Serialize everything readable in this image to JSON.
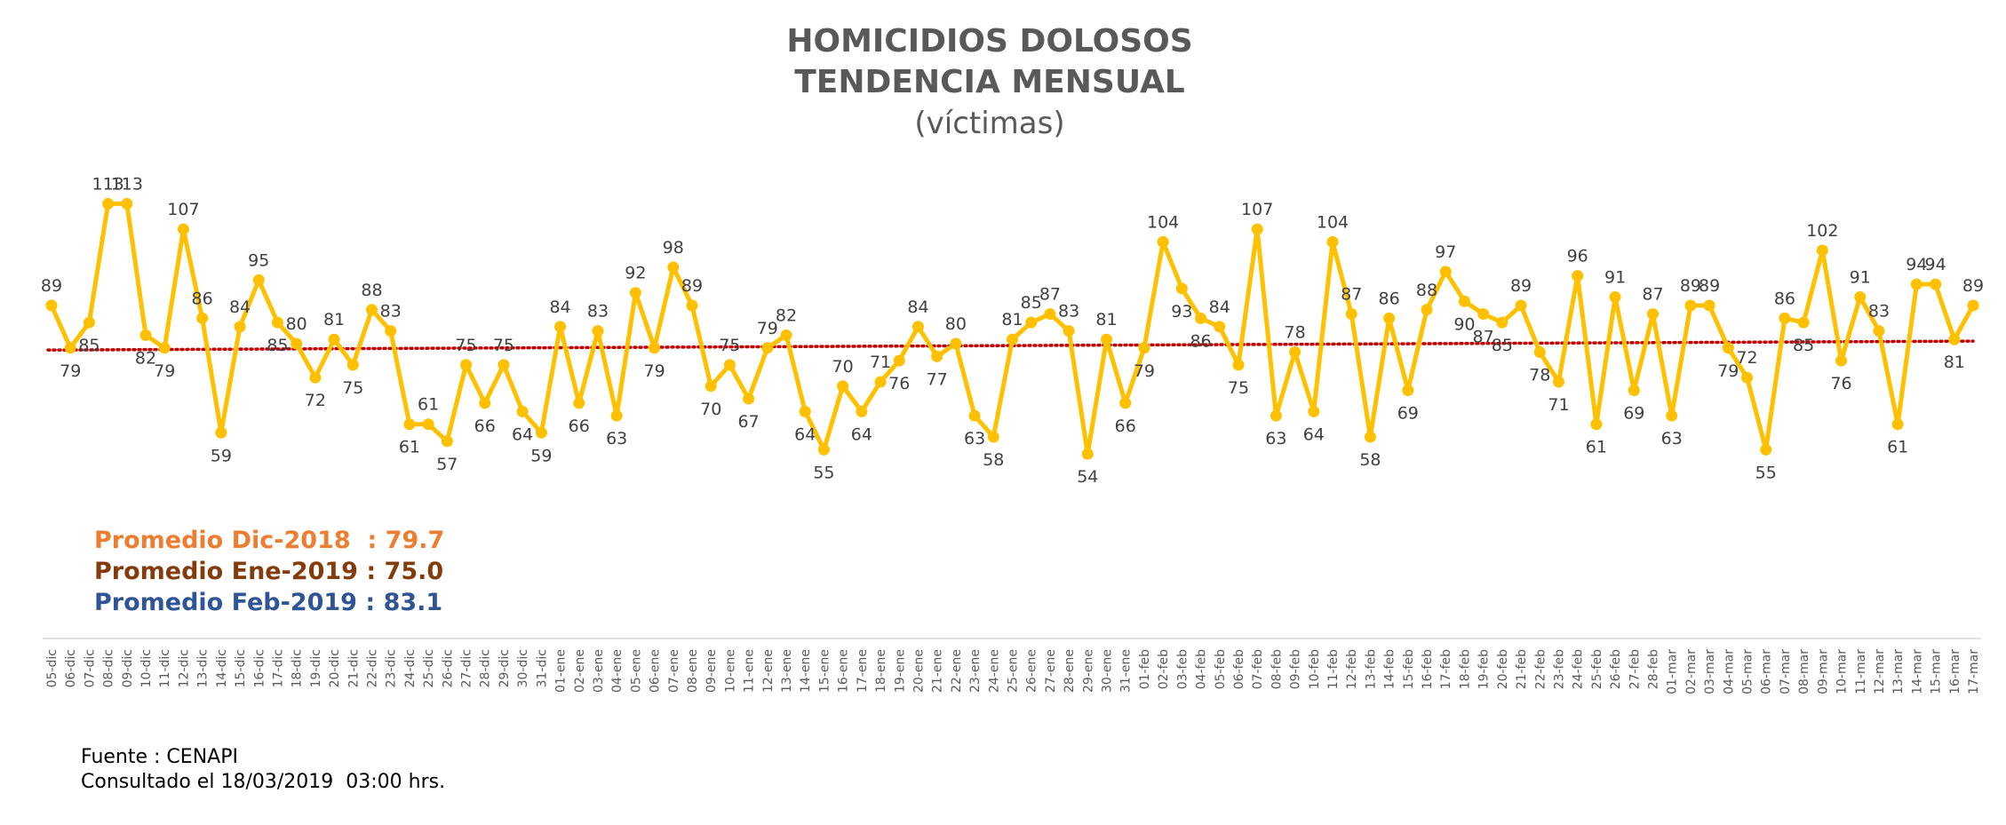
{
  "chart_data": {
    "type": "line",
    "title": "HOMICIDIOS DOLOSOS",
    "subtitle": "TENDENCIA MENSUAL",
    "unit_label": "(víctimas)",
    "categories": [
      "05-dic",
      "06-dic",
      "07-dic",
      "08-dic",
      "09-dic",
      "10-dic",
      "11-dic",
      "12-dic",
      "13-dic",
      "14-dic",
      "15-dic",
      "16-dic",
      "17-dic",
      "18-dic",
      "19-dic",
      "20-dic",
      "21-dic",
      "22-dic",
      "23-dic",
      "24-dic",
      "25-dic",
      "26-dic",
      "27-dic",
      "28-dic",
      "29-dic",
      "30-dic",
      "31-dic",
      "01-ene",
      "02-ene",
      "03-ene",
      "04-ene",
      "05-ene",
      "06-ene",
      "07-ene",
      "08-ene",
      "09-ene",
      "10-ene",
      "11-ene",
      "12-ene",
      "13-ene",
      "14-ene",
      "15-ene",
      "16-ene",
      "17-ene",
      "18-ene",
      "19-ene",
      "20-ene",
      "21-ene",
      "22-ene",
      "23-ene",
      "24-ene",
      "25-ene",
      "26-ene",
      "27-ene",
      "28-ene",
      "29-ene",
      "30-ene",
      "31-ene",
      "01-feb",
      "02-feb",
      "03-feb",
      "04-feb",
      "05-feb",
      "06-feb",
      "07-feb",
      "08-feb",
      "09-feb",
      "10-feb",
      "11-feb",
      "12-feb",
      "13-feb",
      "14-feb",
      "15-feb",
      "16-feb",
      "17-feb",
      "18-feb",
      "19-feb",
      "20-feb",
      "21-feb",
      "22-feb",
      "23-feb",
      "24-feb",
      "25-feb",
      "26-feb",
      "27-feb",
      "28-feb",
      "01-mar",
      "02-mar",
      "03-mar",
      "04-mar",
      "05-mar",
      "06-mar",
      "07-mar",
      "08-mar",
      "09-mar",
      "10-mar",
      "11-mar",
      "12-mar",
      "13-mar",
      "14-mar",
      "15-mar",
      "16-mar",
      "17-mar"
    ],
    "series": [
      {
        "name": "Homicidios dolosos",
        "color": "#ffc000",
        "values": [
          89,
          79,
          85,
          113,
          113,
          82,
          79,
          107,
          86,
          59,
          84,
          95,
          85,
          80,
          72,
          81,
          75,
          88,
          83,
          61,
          61,
          57,
          75,
          66,
          75,
          64,
          59,
          84,
          66,
          83,
          63,
          92,
          79,
          98,
          89,
          70,
          75,
          67,
          79,
          82,
          64,
          55,
          70,
          64,
          71,
          76,
          84,
          77,
          80,
          63,
          58,
          81,
          85,
          87,
          83,
          54,
          81,
          66,
          79,
          104,
          93,
          86,
          84,
          75,
          107,
          63,
          78,
          64,
          104,
          87,
          58,
          86,
          69,
          88,
          97,
          90,
          87,
          85,
          89,
          78,
          71,
          96,
          61,
          91,
          69,
          87,
          63,
          89,
          89,
          79,
          72,
          55,
          86,
          85,
          102,
          76,
          91,
          83,
          61,
          94,
          94,
          81,
          89
        ]
      }
    ],
    "trend": {
      "color": "#c00000",
      "values": [
        78.5,
        80.6
      ]
    },
    "ylim": [
      40,
      120
    ],
    "averages": [
      {
        "text": "Promedio Dic-2018  : 79.7",
        "color": "#ed7d31"
      },
      {
        "text": "Promedio Ene-2019 : 75.0",
        "color": "#843c0c"
      },
      {
        "text": "Promedio Feb-2019 : 83.1",
        "color": "#2f5597"
      }
    ],
    "source": "Fuente : CENAPI",
    "consulted": "Consultado el 18/03/2019  03:00 hrs."
  }
}
